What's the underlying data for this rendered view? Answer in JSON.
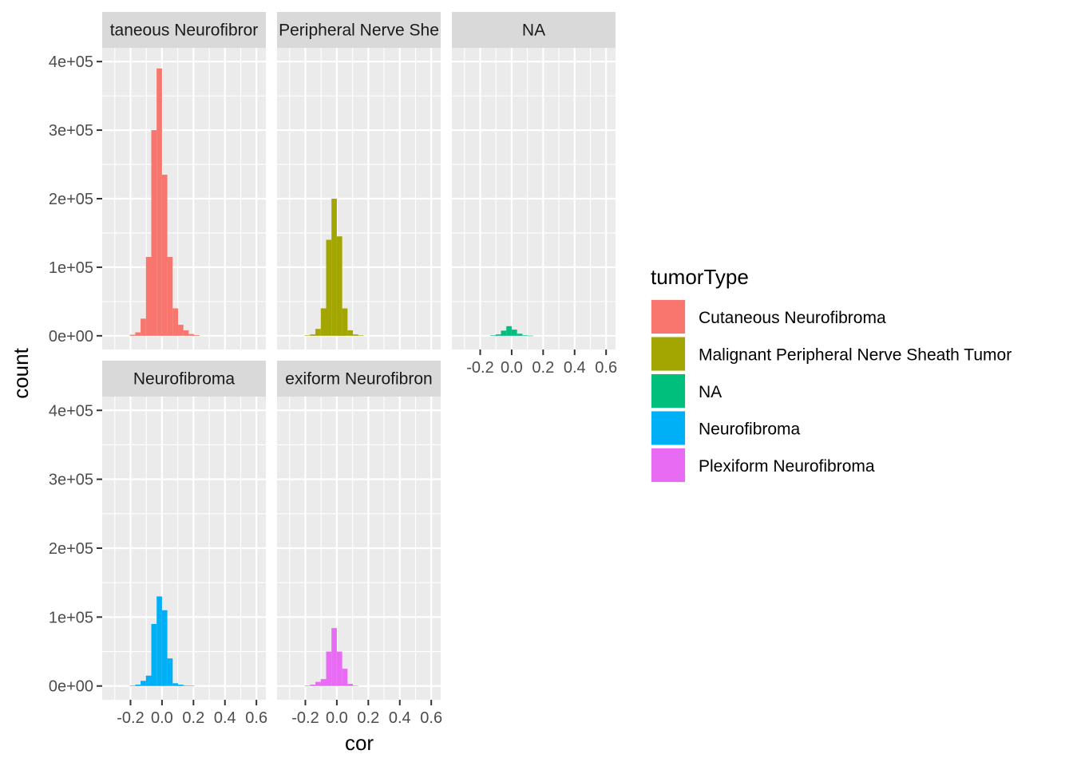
{
  "chart_data": {
    "type": "bar",
    "subtype": "faceted-histogram",
    "xlabel": "cor",
    "ylabel": "count",
    "xlim": [
      -0.38,
      0.66
    ],
    "ylim": [
      -20000,
      420000
    ],
    "x_ticks": [
      -0.2,
      0.0,
      0.2,
      0.4,
      0.6
    ],
    "x_tick_labels": [
      "-0.2",
      "0.0",
      "0.2",
      "0.4",
      "0.6"
    ],
    "y_ticks": [
      0,
      100000,
      200000,
      300000,
      400000
    ],
    "y_tick_labels": [
      "0e+00",
      "1e+05",
      "2e+05",
      "3e+05",
      "4e+05"
    ],
    "grid": true,
    "bin_width": 0.034,
    "bin_centers": [
      -0.187,
      -0.153,
      -0.119,
      -0.085,
      -0.051,
      -0.017,
      0.017,
      0.051,
      0.085,
      0.119,
      0.153,
      0.187,
      0.221,
      0.255,
      0.289
    ],
    "legend": {
      "title": "tumorType",
      "position": "right",
      "entries": [
        {
          "label": "Cutaneous Neurofibroma",
          "color": "#F8766D"
        },
        {
          "label": "Malignant Peripheral Nerve Sheath Tumor",
          "color": "#A3A500"
        },
        {
          "label": "NA",
          "color": "#00BF7D"
        },
        {
          "label": "Neurofibroma",
          "color": "#00B0F6"
        },
        {
          "label": "Plexiform Neurofibroma",
          "color": "#E76BF3"
        }
      ]
    },
    "panels": [
      {
        "strip": "Cutaneous Neurofibroma",
        "strip_visible": "taneous Neurofibror",
        "color": "#F8766D",
        "values": [
          1500,
          5000,
          25000,
          115000,
          300000,
          390000,
          235000,
          115000,
          40000,
          16000,
          8000,
          2500,
          1000,
          0,
          0
        ]
      },
      {
        "strip": "Malignant Peripheral Nerve Sheath Tumor",
        "strip_visible": "Peripheral Nerve She",
        "color": "#A3A500",
        "values": [
          500,
          2000,
          10000,
          40000,
          140000,
          200000,
          145000,
          40000,
          8000,
          2000,
          500,
          0,
          0,
          0,
          0
        ]
      },
      {
        "strip": "NA",
        "strip_visible": "NA",
        "color": "#00BF7D",
        "values": [
          0,
          0,
          500,
          2000,
          7500,
          14000,
          9000,
          3000,
          800,
          200,
          0,
          0,
          0,
          0,
          0
        ]
      },
      {
        "strip": "Neurofibroma",
        "strip_visible": "Neurofibroma",
        "color": "#00B0F6",
        "values": [
          500,
          2000,
          7500,
          15000,
          90000,
          130000,
          110000,
          40000,
          4000,
          2000,
          500,
          300,
          0,
          0,
          0
        ]
      },
      {
        "strip": "Plexiform Neurofibroma",
        "strip_visible": "exiform Neurofibron",
        "color": "#E76BF3",
        "values": [
          500,
          2000,
          6000,
          10000,
          50000,
          84000,
          50000,
          25000,
          3000,
          500,
          0,
          0,
          0,
          0,
          0
        ]
      }
    ]
  }
}
